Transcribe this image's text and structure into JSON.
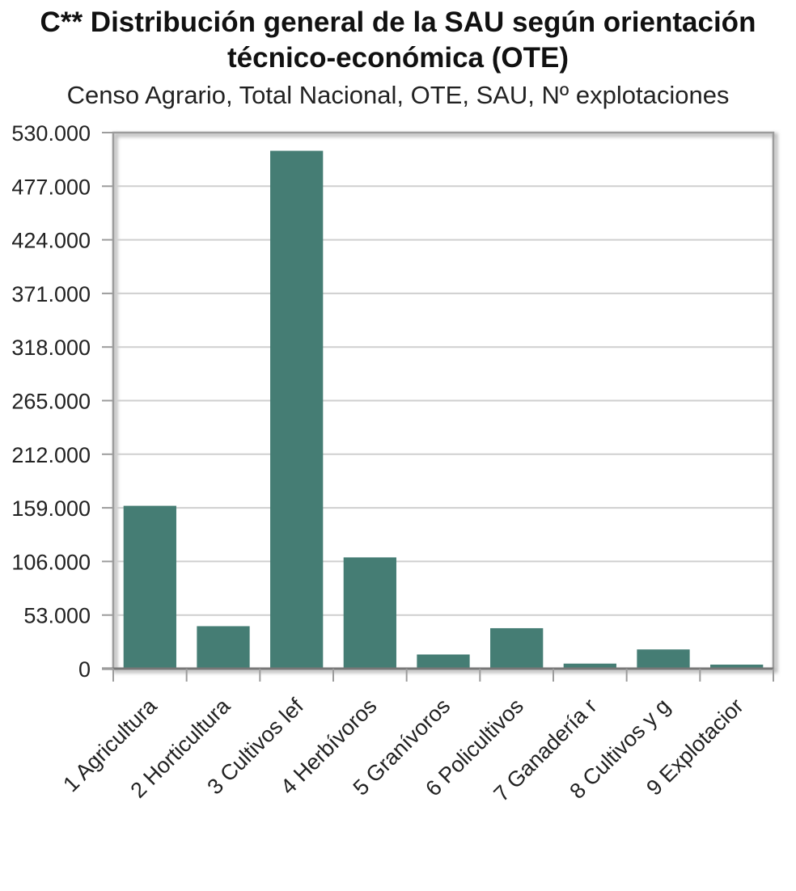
{
  "chart_data": {
    "type": "bar",
    "title_line1": "C** Distribución general de la SAU según orientación",
    "title_line2": "técnico-económica (OTE)",
    "subtitle": "Censo Agrario, Total Nacional, OTE, SAU, Nº explotaciones",
    "categories": [
      "1 Agricultura",
      "2 Horticultura",
      "3 Cultivos lef",
      "4 Herbívoros",
      "5 Granívoros",
      "6 Policultivos",
      "7 Ganadería r",
      "8 Cultivos y g",
      "9 Explotacior"
    ],
    "values": [
      161000,
      42000,
      512000,
      110000,
      14000,
      40000,
      5000,
      19000,
      4000
    ],
    "ylim": [
      0,
      530000
    ],
    "yticks": [
      0,
      53000,
      106000,
      159000,
      212000,
      265000,
      318000,
      371000,
      424000,
      477000,
      530000
    ],
    "ytick_labels": [
      "0",
      "53.000",
      "106.000",
      "159.000",
      "212.000",
      "265.000",
      "318.000",
      "371.000",
      "424.000",
      "477.000",
      "530.000"
    ],
    "grid": true,
    "bar_color": "#457d74"
  }
}
